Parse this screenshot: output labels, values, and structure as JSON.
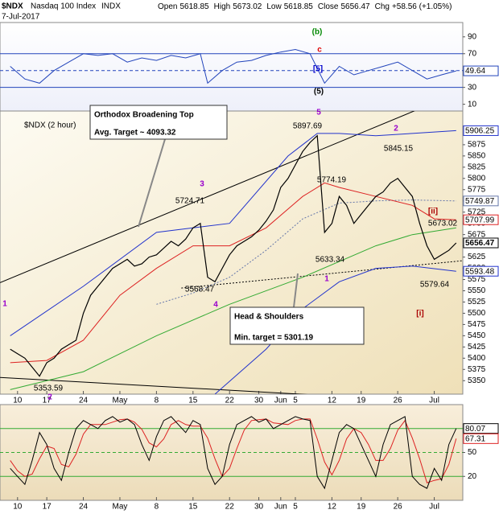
{
  "header": {
    "symbol": "$NDX",
    "name": "Nasdaq 100 Index",
    "exchange": "INDX",
    "date": "7-Jul-2017",
    "quote": [
      {
        "label": "Open",
        "value": 5618.85
      },
      {
        "label": "High",
        "value": 5673.02
      },
      {
        "label": "Low",
        "value": 5618.85
      },
      {
        "label": "Close",
        "value": 5656.47
      },
      {
        "label": "Chg",
        "value": 58.56,
        "value_label": "+58.56 (+1.05%)"
      }
    ]
  },
  "chart_data": [
    {
      "type": "line",
      "xlim": [
        -1.4,
        61.9
      ],
      "ylim": [
        2,
        107
      ],
      "yticks": [
        10,
        30,
        50,
        70,
        90
      ],
      "hlines": [
        {
          "value": 70
        },
        {
          "value": 50,
          "dashed": true
        },
        {
          "value": 30
        }
      ],
      "line_color": "#2244bb",
      "series": [
        {
          "color": "#2244bb",
          "x": [
            0,
            2,
            4,
            6,
            8,
            10,
            12,
            14,
            16,
            18,
            20,
            22,
            24,
            26,
            27,
            29,
            31,
            33,
            35,
            37,
            39,
            41,
            43,
            45,
            47,
            49,
            51,
            53,
            55,
            57,
            59,
            61
          ],
          "values": [
            55,
            40,
            35,
            50,
            60,
            70,
            68,
            70,
            60,
            65,
            62,
            68,
            65,
            70,
            35,
            50,
            60,
            62,
            68,
            72,
            75,
            70,
            35,
            55,
            45,
            50,
            55,
            60,
            50,
            40,
            45,
            49.64
          ]
        }
      ],
      "last_value_labels": [
        {
          "value": 49.64,
          "color": "#2244bb"
        }
      ]
    },
    {
      "type": "line",
      "title": "$NDX (2 hour)",
      "xlim": [
        -1.4,
        61.9
      ],
      "ylim": [
        5320,
        5950
      ],
      "yticks": [
        5350,
        5375,
        5400,
        5425,
        5450,
        5475,
        5500,
        5525,
        5550,
        5575,
        5600,
        5625,
        5650,
        5675,
        5700,
        5725,
        5750,
        5775,
        5800,
        5825,
        5850,
        5875
      ],
      "xticks": [
        {
          "value": 1,
          "label": "10"
        },
        {
          "value": 5,
          "label": "17"
        },
        {
          "value": 10,
          "label": "24"
        },
        {
          "value": 15,
          "label": "May"
        },
        {
          "value": 20,
          "label": "8"
        },
        {
          "value": 25,
          "label": "15"
        },
        {
          "value": 30,
          "label": "22"
        },
        {
          "value": 34,
          "label": "30"
        },
        {
          "value": 37,
          "label": "Jun"
        },
        {
          "value": 39,
          "label": "5"
        },
        {
          "value": 44,
          "label": "12"
        },
        {
          "value": 48,
          "label": "19"
        },
        {
          "value": 53,
          "label": "26"
        },
        {
          "value": 58,
          "label": "Jul"
        }
      ],
      "x": [
        0,
        1,
        2,
        3,
        4,
        5,
        6,
        7,
        8,
        9,
        10,
        11,
        12,
        13,
        14,
        15,
        16,
        17,
        18,
        19,
        20,
        21,
        22,
        23,
        24,
        25,
        26,
        27,
        28,
        29,
        30,
        31,
        32,
        33,
        34,
        35,
        36,
        37,
        38,
        39,
        40,
        41,
        42,
        43,
        44,
        45,
        46,
        47,
        48,
        49,
        50,
        51,
        52,
        53,
        54,
        55,
        56,
        57,
        58,
        59,
        60,
        61
      ],
      "series": [
        {
          "color": "#33aa33",
          "x": [
            0,
            10,
            20,
            30,
            40,
            50,
            55,
            61
          ],
          "values": [
            5330,
            5370,
            5450,
            5520,
            5580,
            5650,
            5675,
            5690
          ]
        },
        {
          "color": "#2233cc",
          "x": [
            0,
            10,
            20,
            30,
            38,
            42,
            45,
            50,
            55,
            61
          ],
          "values": [
            5450,
            5560,
            5680,
            5700,
            5850,
            5900,
            5900,
            5895,
            5900,
            5906.25
          ]
        },
        {
          "color": "#2233cc",
          "x": [
            28,
            35,
            40,
            45,
            50,
            55,
            61
          ],
          "values": [
            5320,
            5420,
            5510,
            5570,
            5600,
            5605,
            5593.48
          ]
        },
        {
          "color": "#6677aa",
          "dashed": true,
          "x": [
            20,
            25,
            30,
            35,
            40,
            45,
            50,
            55,
            61
          ],
          "values": [
            5520,
            5545,
            5580,
            5640,
            5710,
            5745,
            5750,
            5752,
            5749.87
          ]
        },
        {
          "color": "#dd2222",
          "x": [
            0,
            5,
            10,
            15,
            20,
            25,
            30,
            35,
            40,
            43,
            45,
            50,
            55,
            58,
            61
          ],
          "values": [
            5390,
            5395,
            5440,
            5540,
            5600,
            5650,
            5650,
            5690,
            5760,
            5790,
            5780,
            5760,
            5740,
            5710,
            5707.99
          ]
        },
        {
          "color": "#000000",
          "values": [
            5420,
            5410,
            5400,
            5380,
            5360,
            5390,
            5400,
            5420,
            5430,
            5440,
            5500,
            5540,
            5560,
            5580,
            5600,
            5610,
            5620,
            5605,
            5610,
            5625,
            5630,
            5645,
            5660,
            5650,
            5665,
            5690,
            5700,
            5580,
            5570,
            5600,
            5630,
            5650,
            5660,
            5670,
            5685,
            5705,
            5730,
            5780,
            5800,
            5830,
            5860,
            5880,
            5895,
            5680,
            5700,
            5760,
            5740,
            5700,
            5720,
            5740,
            5760,
            5770,
            5790,
            5800,
            5780,
            5760,
            5700,
            5650,
            5620,
            5630,
            5640,
            5656.47
          ]
        }
      ],
      "trendlines": [
        {
          "x": [
            -1.4,
            61.9
          ],
          "values": [
            5568,
            5995
          ]
        },
        {
          "x": [
            -1.4,
            61.9
          ],
          "values": [
            5357,
            5300
          ]
        },
        {
          "x": [
            23.4,
            61.9
          ],
          "values": [
            5556,
            5617
          ],
          "dashed": true
        }
      ],
      "last_value_labels": [
        {
          "value": 5906.25,
          "color": "#2233cc"
        },
        {
          "value": 5749.87,
          "color": "#6677aa"
        },
        {
          "value": 5707.99,
          "color": "#dd2222"
        },
        {
          "value": 5656.47,
          "color": "#000000"
        },
        {
          "value": 5593.48,
          "color": "#2233cc"
        }
      ],
      "price_labels": [
        5897.69,
        5845.15,
        5724.71,
        5774.19,
        5673.02,
        5633.34,
        5568.47,
        5579.64,
        5353.59
      ],
      "annotations": [
        {
          "text": "1",
          "color": "#9900cc"
        },
        {
          "text": "2",
          "color": "#9900cc"
        },
        {
          "text": "3",
          "color": "#9900cc"
        },
        {
          "text": "4",
          "color": "#9900cc"
        },
        {
          "text": "5",
          "color": "#9900cc"
        },
        {
          "text": "1",
          "color": "#9900cc"
        },
        {
          "text": "2",
          "color": "#9900cc"
        },
        {
          "text": "[ii]",
          "color": "#aa0000"
        },
        {
          "text": "[i]",
          "color": "#aa0000"
        },
        {
          "text": "(b)",
          "color": "#008800"
        },
        {
          "text": "c",
          "color": "#dd0000"
        },
        {
          "text": "[5]",
          "color": "#0000cc"
        },
        {
          "text": "(5)",
          "color": "#000000"
        }
      ],
      "callouts": [
        [
          "Orthodox Broadening Top",
          "Avg. Target ~ 4093.32"
        ],
        [
          "Head & Shoulders",
          "Min. target = 5301.19"
        ]
      ]
    },
    {
      "type": "line",
      "xlim": [
        -1.4,
        61.9
      ],
      "ylim": [
        -10,
        110
      ],
      "yticks": [
        20,
        50,
        80
      ],
      "hlines": [
        {
          "value": 80
        },
        {
          "value": 50,
          "dashed": true
        },
        {
          "value": 20
        }
      ],
      "xticks": [
        {
          "value": 1,
          "label": "10"
        },
        {
          "value": 5,
          "label": "17"
        },
        {
          "value": 10,
          "label": "24"
        },
        {
          "value": 15,
          "label": "May"
        },
        {
          "value": 20,
          "label": "8"
        },
        {
          "value": 25,
          "label": "15"
        },
        {
          "value": 30,
          "label": "22"
        },
        {
          "value": 34,
          "label": "30"
        },
        {
          "value": 37,
          "label": "Jun"
        },
        {
          "value": 39,
          "label": "5"
        },
        {
          "value": 44,
          "label": "12"
        },
        {
          "value": 48,
          "label": "19"
        },
        {
          "value": 53,
          "label": "26"
        },
        {
          "value": 58,
          "label": "Jul"
        }
      ],
      "x": [
        0,
        1,
        2,
        3,
        4,
        5,
        6,
        7,
        8,
        9,
        10,
        11,
        12,
        13,
        14,
        15,
        16,
        17,
        18,
        19,
        20,
        21,
        22,
        23,
        24,
        25,
        26,
        27,
        28,
        29,
        30,
        31,
        32,
        33,
        34,
        35,
        36,
        37,
        38,
        39,
        40,
        41,
        42,
        43,
        44,
        45,
        46,
        47,
        48,
        49,
        50,
        51,
        52,
        53,
        54,
        55,
        56,
        57,
        58,
        59,
        60,
        61
      ],
      "series": [
        {
          "color": "#dd2222",
          "values": [
            40,
            27,
            20,
            23,
            42,
            58,
            55,
            35,
            32,
            48,
            73,
            85,
            85,
            85,
            88,
            91,
            92,
            88,
            79,
            62,
            57,
            67,
            85,
            90,
            85,
            83,
            83,
            68,
            42,
            20,
            30,
            55,
            78,
            90,
            91,
            92,
            87,
            86,
            85,
            90,
            92,
            92,
            67,
            38,
            22,
            40,
            67,
            80,
            75,
            60,
            40,
            40,
            55,
            78,
            90,
            68,
            42,
            12,
            15,
            17,
            35,
            67.31
          ]
        },
        {
          "color": "#000000",
          "values": [
            30,
            20,
            10,
            40,
            75,
            60,
            30,
            15,
            50,
            80,
            90,
            85,
            80,
            90,
            95,
            88,
            92,
            85,
            60,
            40,
            70,
            90,
            95,
            85,
            75,
            90,
            85,
            30,
            10,
            20,
            60,
            85,
            90,
            95,
            88,
            92,
            80,
            85,
            90,
            95,
            92,
            90,
            20,
            5,
            40,
            75,
            85,
            80,
            60,
            40,
            20,
            60,
            85,
            90,
            95,
            20,
            10,
            5,
            30,
            15,
            60,
            80.07
          ]
        }
      ],
      "last_value_labels": [
        {
          "value": 80.07,
          "color": "#000000"
        },
        {
          "value": 67.31,
          "color": "#dd2222"
        }
      ]
    }
  ]
}
